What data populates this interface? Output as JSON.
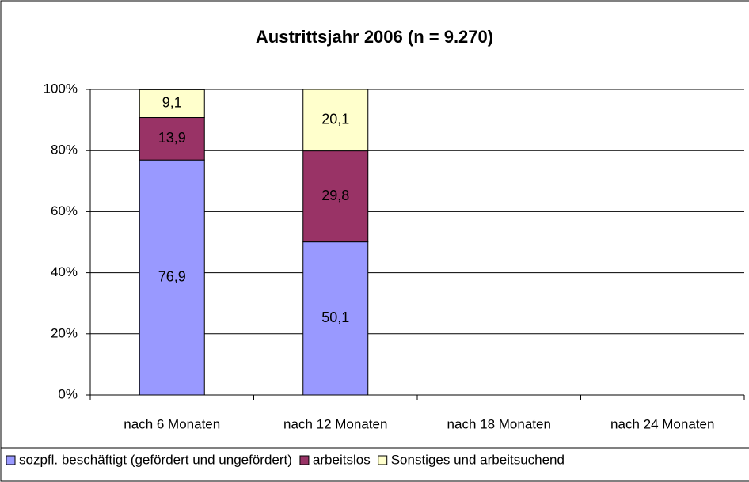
{
  "chart_data": {
    "type": "stacked_bar",
    "title": "Austrittsjahr 2006 (n = 9.270)",
    "categories": [
      "nach 6 Monaten",
      "nach 12 Monaten",
      "nach 18 Monaten",
      "nach 24 Monaten"
    ],
    "series": [
      {
        "name": "sozpfl. beschäftigt (gefördert und ungefördert)",
        "color": "#9999ff",
        "values": [
          76.9,
          50.1,
          null,
          null
        ],
        "value_labels": [
          "76,9",
          "50,1",
          null,
          null
        ]
      },
      {
        "name": "arbeitslos",
        "color": "#993366",
        "values": [
          13.9,
          29.8,
          null,
          null
        ],
        "value_labels": [
          "13,9",
          "29,8",
          null,
          null
        ]
      },
      {
        "name": "Sonstiges und arbeitsuchend",
        "color": "#ffffcc",
        "values": [
          9.1,
          20.1,
          null,
          null
        ],
        "value_labels": [
          "9,1",
          "20,1",
          null,
          null
        ]
      }
    ],
    "ylim": [
      0,
      100
    ],
    "yticks": [
      {
        "value": 0,
        "label": "0%"
      },
      {
        "value": 20,
        "label": "20%"
      },
      {
        "value": 40,
        "label": "40%"
      },
      {
        "value": 60,
        "label": "60%"
      },
      {
        "value": 80,
        "label": "80%"
      },
      {
        "value": 100,
        "label": "100%"
      }
    ],
    "grid": true,
    "legend": "bottom"
  }
}
